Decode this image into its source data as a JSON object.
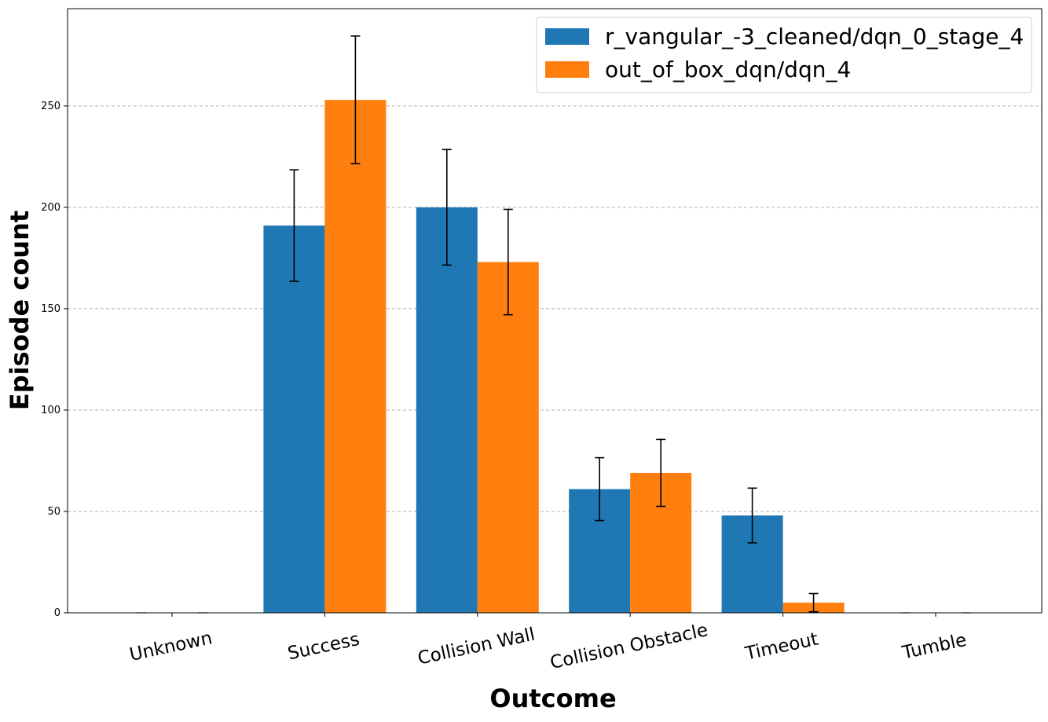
{
  "chart_data": {
    "type": "bar",
    "xlabel": "Outcome",
    "ylabel": "Episode count",
    "categories": [
      "Unknown",
      "Success",
      "Collision Wall",
      "Collision Obstacle",
      "Timeout",
      "Tumble"
    ],
    "series": [
      {
        "name": "r_vangular_-3_cleaned/dqn_0_stage_4",
        "color": "#1f77b4",
        "values": [
          0,
          191,
          200,
          61,
          48,
          0
        ],
        "errors": [
          0,
          27.5,
          28.5,
          15.5,
          13.5,
          0
        ]
      },
      {
        "name": "out_of_box_dqn/dqn_4",
        "color": "#ff7f0e",
        "values": [
          0,
          253,
          173,
          69,
          5,
          0
        ],
        "errors": [
          0,
          31.5,
          26,
          16.5,
          4.5,
          0
        ]
      }
    ],
    "ylim": [
      0,
      298
    ],
    "yticks": [
      0,
      50,
      100,
      150,
      200,
      250
    ],
    "grid": "y-dashed",
    "legend_position": "top-right"
  }
}
